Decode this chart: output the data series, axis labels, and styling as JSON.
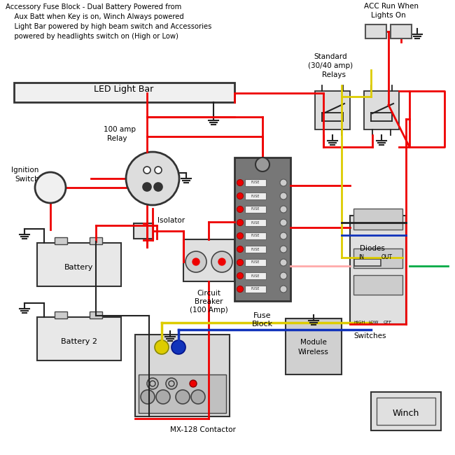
{
  "title_lines": [
    "Accessory Fuse Block - Dual Battery Powered from",
    "    Aux Batt when Key is on, Winch Always powered",
    "    Light Bar powered by high beam switch and Accessories",
    "    powered by headlights switch on (High or Low)"
  ],
  "bg_color": "#ffffff",
  "wire_red": "#ee0000",
  "wire_black": "#222222",
  "wire_yellow": "#ddcc00",
  "wire_blue": "#1133bb",
  "wire_green": "#00aa44",
  "wire_pink": "#ffaaaa",
  "comp_fill": "#e0e0e0",
  "comp_edge": "#333333",
  "fuse_fill": "#888888"
}
